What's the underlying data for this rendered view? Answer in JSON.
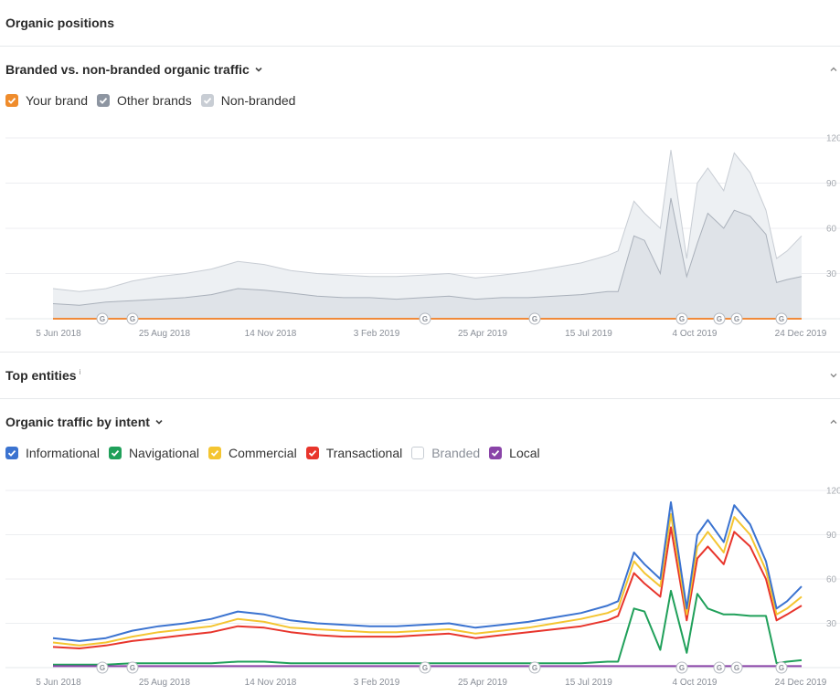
{
  "sections": {
    "organic_positions": {
      "title": "Organic positions"
    },
    "branded": {
      "title": "Branded vs. non-branded organic traffic"
    },
    "top_entities": {
      "title": "Top entities",
      "info": "i"
    },
    "intent": {
      "title": "Organic traffic by intent"
    }
  },
  "branded_legend": [
    {
      "label": "Your brand",
      "checked": true,
      "color": "#ef8c2c"
    },
    {
      "label": "Other brands",
      "checked": true,
      "color": "#8d95a1"
    },
    {
      "label": "Non-branded",
      "checked": true,
      "color": "#c8cdd4"
    }
  ],
  "intent_legend": [
    {
      "label": "Informational",
      "checked": true,
      "color": "#3b73d0"
    },
    {
      "label": "Navigational",
      "checked": true,
      "color": "#20a05a"
    },
    {
      "label": "Commercial",
      "checked": true,
      "color": "#f4c531"
    },
    {
      "label": "Transactional",
      "checked": true,
      "color": "#e8352c"
    },
    {
      "label": "Branded",
      "checked": false,
      "color": "#c8cdd4"
    },
    {
      "label": "Local",
      "checked": true,
      "color": "#8a44a8"
    }
  ],
  "chart_data": [
    {
      "type": "area",
      "x_ticks": [
        "5 Jun 2018",
        "25 Aug 2018",
        "14 Nov 2018",
        "3 Feb 2019",
        "25 Apr 2019",
        "15 Jul 2019",
        "4 Oct 2019",
        "24 Dec 2019"
      ],
      "y_ticks": [
        "120",
        "90",
        "60",
        "30"
      ],
      "ylim": [
        0,
        120
      ],
      "google_markers": 7,
      "x": [
        "2018-06-05",
        "2018-06-25",
        "2018-07-15",
        "2018-08-04",
        "2018-08-24",
        "2018-09-13",
        "2018-10-03",
        "2018-10-23",
        "2018-11-12",
        "2018-12-02",
        "2018-12-22",
        "2019-01-11",
        "2019-01-31",
        "2019-02-20",
        "2019-03-12",
        "2019-04-01",
        "2019-04-21",
        "2019-05-11",
        "2019-05-31",
        "2019-06-20",
        "2019-07-10",
        "2019-07-30",
        "2019-08-07",
        "2019-08-19",
        "2019-08-27",
        "2019-09-08",
        "2019-09-16",
        "2019-09-28",
        "2019-10-06",
        "2019-10-14",
        "2019-10-26",
        "2019-11-03",
        "2019-11-15",
        "2019-11-27",
        "2019-12-05",
        "2019-12-13",
        "2019-12-24"
      ],
      "series": [
        {
          "name": "Your brand",
          "values": [
            0,
            0,
            0,
            0,
            0,
            0,
            0,
            0,
            0,
            0,
            0,
            0,
            0,
            0,
            0,
            0,
            0,
            0,
            0,
            0,
            0,
            0,
            0,
            0,
            0,
            0,
            0,
            0,
            0,
            0,
            0,
            0,
            0,
            0,
            0,
            0,
            0
          ]
        },
        {
          "name": "Other brands",
          "values": [
            10,
            9,
            11,
            12,
            13,
            14,
            16,
            20,
            19,
            17,
            15,
            14,
            14,
            13,
            14,
            15,
            13,
            14,
            14,
            15,
            16,
            18,
            18,
            55,
            52,
            30,
            80,
            28,
            50,
            70,
            60,
            72,
            68,
            56,
            24,
            26,
            28
          ]
        },
        {
          "name": "Non-branded",
          "values": [
            20,
            18,
            20,
            25,
            28,
            30,
            33,
            38,
            36,
            32,
            30,
            29,
            28,
            28,
            29,
            30,
            27,
            29,
            31,
            34,
            37,
            42,
            45,
            78,
            70,
            60,
            112,
            40,
            90,
            100,
            85,
            110,
            97,
            72,
            40,
            45,
            55
          ]
        }
      ]
    },
    {
      "type": "line",
      "x_ticks": [
        "5 Jun 2018",
        "25 Aug 2018",
        "14 Nov 2018",
        "3 Feb 2019",
        "25 Apr 2019",
        "15 Jul 2019",
        "4 Oct 2019",
        "24 Dec 2019"
      ],
      "y_ticks": [
        "120",
        "90",
        "60",
        "30"
      ],
      "ylim": [
        0,
        120
      ],
      "google_markers": 7,
      "x": [
        "2018-06-05",
        "2018-06-25",
        "2018-07-15",
        "2018-08-04",
        "2018-08-24",
        "2018-09-13",
        "2018-10-03",
        "2018-10-23",
        "2018-11-12",
        "2018-12-02",
        "2018-12-22",
        "2019-01-11",
        "2019-01-31",
        "2019-02-20",
        "2019-03-12",
        "2019-04-01",
        "2019-04-21",
        "2019-05-11",
        "2019-05-31",
        "2019-06-20",
        "2019-07-10",
        "2019-07-30",
        "2019-08-07",
        "2019-08-19",
        "2019-08-27",
        "2019-09-08",
        "2019-09-16",
        "2019-09-28",
        "2019-10-06",
        "2019-10-14",
        "2019-10-26",
        "2019-11-03",
        "2019-11-15",
        "2019-11-27",
        "2019-12-05",
        "2019-12-13",
        "2019-12-24"
      ],
      "series": [
        {
          "name": "Informational",
          "values": [
            20,
            18,
            20,
            25,
            28,
            30,
            33,
            38,
            36,
            32,
            30,
            29,
            28,
            28,
            29,
            30,
            27,
            29,
            31,
            34,
            37,
            42,
            45,
            78,
            70,
            60,
            112,
            40,
            90,
            100,
            85,
            110,
            97,
            72,
            40,
            45,
            55
          ]
        },
        {
          "name": "Navigational",
          "values": [
            2,
            2,
            2,
            3,
            3,
            3,
            3,
            4,
            4,
            3,
            3,
            3,
            3,
            3,
            3,
            3,
            3,
            3,
            3,
            3,
            3,
            4,
            4,
            40,
            38,
            12,
            52,
            10,
            50,
            40,
            36,
            36,
            35,
            35,
            3,
            4,
            5
          ]
        },
        {
          "name": "Commercial",
          "values": [
            17,
            15,
            17,
            21,
            24,
            26,
            28,
            33,
            31,
            27,
            26,
            25,
            24,
            24,
            25,
            26,
            23,
            25,
            27,
            30,
            33,
            37,
            40,
            72,
            64,
            55,
            104,
            36,
            82,
            92,
            78,
            102,
            90,
            66,
            36,
            40,
            48
          ]
        },
        {
          "name": "Transactional",
          "values": [
            14,
            13,
            15,
            18,
            20,
            22,
            24,
            28,
            27,
            24,
            22,
            21,
            21,
            21,
            22,
            23,
            20,
            22,
            24,
            26,
            28,
            32,
            35,
            64,
            57,
            48,
            95,
            32,
            74,
            82,
            70,
            92,
            82,
            60,
            32,
            36,
            42
          ]
        },
        {
          "name": "Local",
          "values": [
            1,
            1,
            1,
            1,
            1,
            1,
            1,
            1,
            1,
            1,
            1,
            1,
            1,
            1,
            1,
            1,
            1,
            1,
            1,
            1,
            1,
            1,
            1,
            1,
            1,
            1,
            1,
            1,
            1,
            1,
            1,
            1,
            1,
            1,
            1,
            1,
            1
          ]
        }
      ]
    }
  ]
}
